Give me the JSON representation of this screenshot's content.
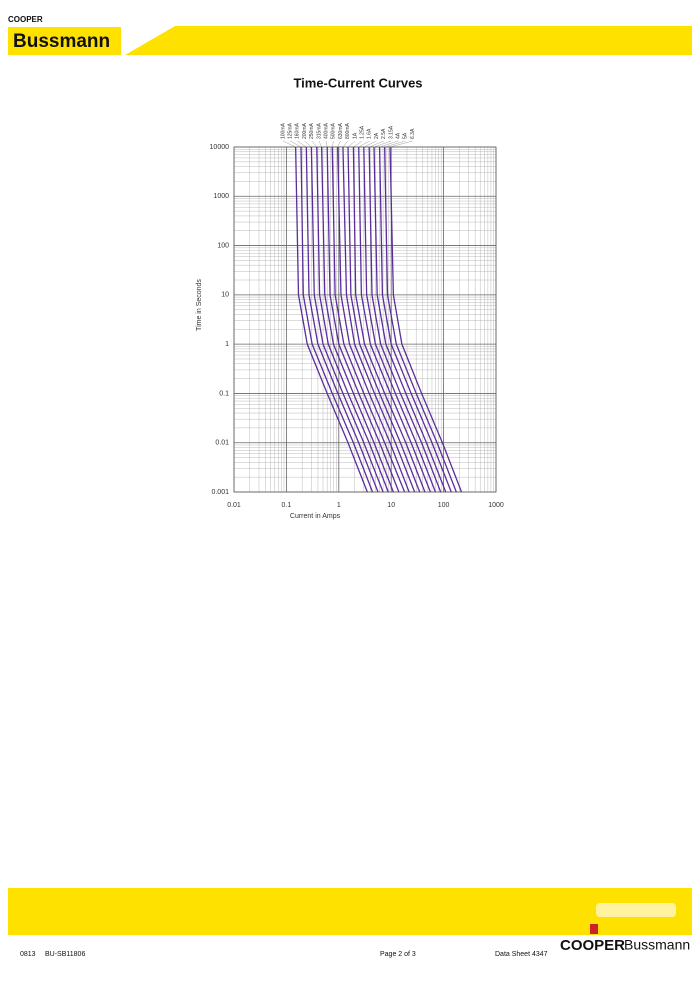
{
  "header": {
    "brand_small": "COOPER",
    "brand": "Bussmann"
  },
  "chart_data": {
    "type": "line",
    "title": "Time-Current Curves",
    "x_label": "Current in Amps",
    "y_label": "Time in Seconds",
    "log_x": true,
    "log_y": true,
    "grid": true,
    "xlim": [
      0.01,
      1000
    ],
    "ylim": [
      0.001,
      10000
    ],
    "xticks": [
      0.01,
      0.1,
      1,
      10,
      100,
      1000
    ],
    "yticks": [
      0.001,
      0.01,
      0.1,
      1,
      10,
      100,
      1000,
      10000
    ],
    "series": [
      {
        "name": "100mA",
        "color": "#5b2d9b",
        "x": [
          0.15,
          0.17,
          0.25,
          0.6,
          1.5,
          3.5
        ],
        "values": [
          10000,
          10,
          1,
          0.1,
          0.01,
          0.001
        ]
      },
      {
        "name": "125mA",
        "color": "#5b2d9b",
        "x": [
          0.19,
          0.21,
          0.31,
          0.75,
          1.9,
          4.4
        ],
        "values": [
          10000,
          10,
          1,
          0.1,
          0.01,
          0.001
        ]
      },
      {
        "name": "160mA",
        "color": "#5b2d9b",
        "x": [
          0.24,
          0.27,
          0.4,
          0.96,
          2.4,
          5.6
        ],
        "values": [
          10000,
          10,
          1,
          0.1,
          0.01,
          0.001
        ]
      },
      {
        "name": "200mA",
        "color": "#5b2d9b",
        "x": [
          0.3,
          0.34,
          0.5,
          1.2,
          3,
          7
        ],
        "values": [
          10000,
          10,
          1,
          0.1,
          0.01,
          0.001
        ]
      },
      {
        "name": "250mA",
        "color": "#5b2d9b",
        "x": [
          0.38,
          0.43,
          0.63,
          1.5,
          3.8,
          8.8
        ],
        "values": [
          10000,
          10,
          1,
          0.1,
          0.01,
          0.001
        ]
      },
      {
        "name": "315mA",
        "color": "#5b2d9b",
        "x": [
          0.47,
          0.54,
          0.79,
          1.9,
          4.7,
          11
        ],
        "values": [
          10000,
          10,
          1,
          0.1,
          0.01,
          0.001
        ]
      },
      {
        "name": "400mA",
        "color": "#5b2d9b",
        "x": [
          0.6,
          0.68,
          1,
          2.4,
          6,
          14
        ],
        "values": [
          10000,
          10,
          1,
          0.1,
          0.01,
          0.001
        ]
      },
      {
        "name": "500mA",
        "color": "#5b2d9b",
        "x": [
          0.75,
          0.85,
          1.25,
          3,
          7.5,
          18
        ],
        "values": [
          10000,
          10,
          1,
          0.1,
          0.01,
          0.001
        ]
      },
      {
        "name": "630mA",
        "color": "#5b2d9b",
        "x": [
          0.95,
          1.1,
          1.6,
          3.8,
          9.5,
          22
        ],
        "values": [
          10000,
          10,
          1,
          0.1,
          0.01,
          0.001
        ]
      },
      {
        "name": "800mA",
        "color": "#5b2d9b",
        "x": [
          1.2,
          1.4,
          2,
          4.8,
          12,
          28
        ],
        "values": [
          10000,
          10,
          1,
          0.1,
          0.01,
          0.001
        ]
      },
      {
        "name": "1A",
        "color": "#5b2d9b",
        "x": [
          1.5,
          1.7,
          2.5,
          6,
          15,
          35
        ],
        "values": [
          10000,
          10,
          1,
          0.1,
          0.01,
          0.001
        ]
      },
      {
        "name": "1.25A",
        "color": "#5b2d9b",
        "x": [
          1.9,
          2.1,
          3.1,
          7.5,
          19,
          44
        ],
        "values": [
          10000,
          10,
          1,
          0.1,
          0.01,
          0.001
        ]
      },
      {
        "name": "1.6A",
        "color": "#5b2d9b",
        "x": [
          2.4,
          2.7,
          4,
          9.6,
          24,
          56
        ],
        "values": [
          10000,
          10,
          1,
          0.1,
          0.01,
          0.001
        ]
      },
      {
        "name": "2A",
        "color": "#5b2d9b",
        "x": [
          3,
          3.4,
          5,
          12,
          30,
          70
        ],
        "values": [
          10000,
          10,
          1,
          0.1,
          0.01,
          0.001
        ]
      },
      {
        "name": "2.5A",
        "color": "#5b2d9b",
        "x": [
          3.8,
          4.3,
          6.3,
          15,
          38,
          88
        ],
        "values": [
          10000,
          10,
          1,
          0.1,
          0.01,
          0.001
        ]
      },
      {
        "name": "3.15A",
        "color": "#5b2d9b",
        "x": [
          4.7,
          5.4,
          7.9,
          19,
          47,
          110
        ],
        "values": [
          10000,
          10,
          1,
          0.1,
          0.01,
          0.001
        ]
      },
      {
        "name": "4A",
        "color": "#5b2d9b",
        "x": [
          6,
          6.8,
          10,
          24,
          60,
          140
        ],
        "values": [
          10000,
          10,
          1,
          0.1,
          0.01,
          0.001
        ]
      },
      {
        "name": "5A",
        "color": "#5b2d9b",
        "x": [
          7.5,
          8.5,
          12.5,
          30,
          75,
          175
        ],
        "values": [
          10000,
          10,
          1,
          0.1,
          0.01,
          0.001
        ]
      },
      {
        "name": "6.3A",
        "color": "#5b2d9b",
        "x": [
          9.5,
          11,
          16,
          38,
          95,
          220
        ],
        "values": [
          10000,
          10,
          1,
          0.1,
          0.01,
          0.001
        ]
      }
    ]
  },
  "footer": {
    "date": "0813",
    "code": "BU-SB11806",
    "page": "Page 2 of 3",
    "sheet": "Data Sheet 4347",
    "logo_left": "COOPER",
    "logo_right": "Bussmann"
  }
}
